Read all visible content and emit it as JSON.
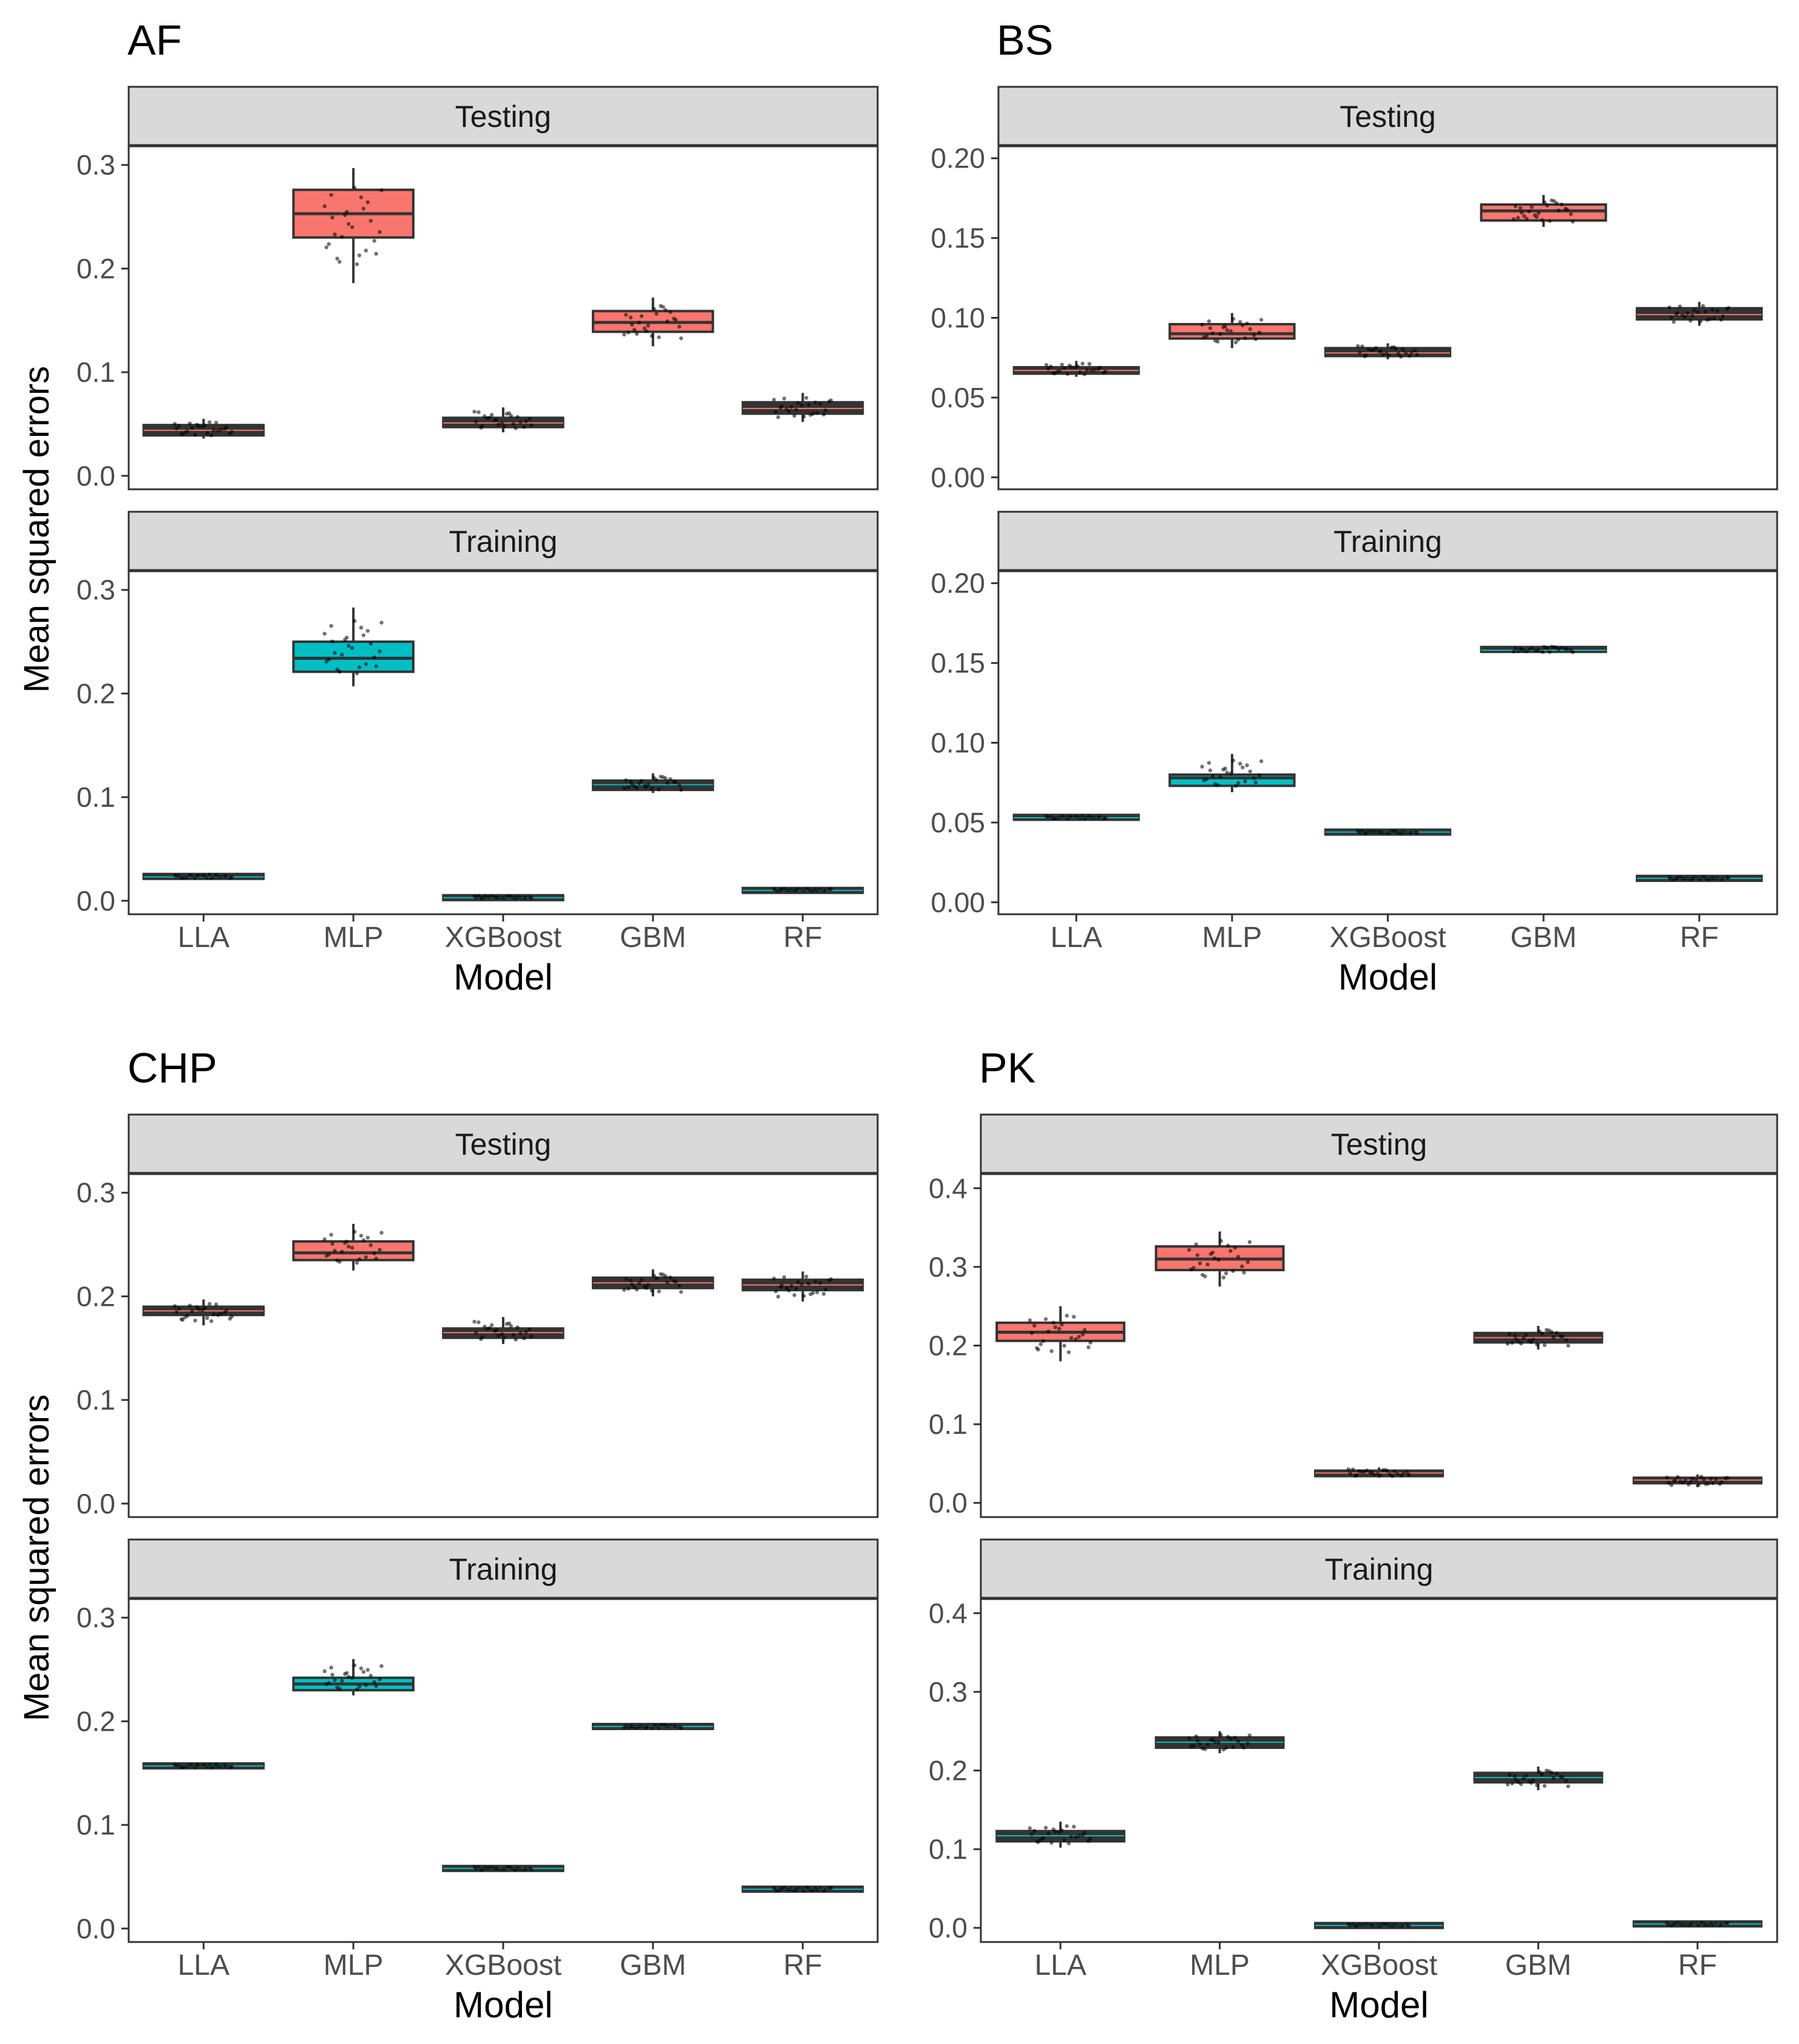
{
  "chart_data": [
    {
      "type": "boxplot",
      "title": "AF",
      "ylabel": "Mean squared errors",
      "xlabel": "Model",
      "categories": [
        "LLA",
        "MLP",
        "XGBoost",
        "GBM",
        "RF"
      ],
      "ylim": [
        -0.013,
        0.318
      ],
      "yticks": [
        "0.0",
        "0.1",
        "0.2",
        "0.3"
      ],
      "yticks_values": [
        0,
        0.1,
        0.2,
        0.3
      ],
      "panels": [
        {
          "strip": "Testing",
          "fill": "#F8766D",
          "boxes": [
            {
              "q1": 0.039,
              "median": 0.044,
              "q3": 0.049,
              "wlo": 0.036,
              "whi": 0.055,
              "highlight": false
            },
            {
              "q1": 0.23,
              "median": 0.253,
              "q3": 0.276,
              "wlo": 0.186,
              "whi": 0.297,
              "highlight": true
            },
            {
              "q1": 0.047,
              "median": 0.051,
              "q3": 0.056,
              "wlo": 0.042,
              "whi": 0.066,
              "highlight": false
            },
            {
              "q1": 0.139,
              "median": 0.148,
              "q3": 0.159,
              "wlo": 0.125,
              "whi": 0.172,
              "highlight": true
            },
            {
              "q1": 0.06,
              "median": 0.065,
              "q3": 0.071,
              "wlo": 0.052,
              "whi": 0.08,
              "highlight": false
            }
          ]
        },
        {
          "strip": "Training",
          "fill": "#00BFC4",
          "boxes": [
            {
              "q1": 0.022,
              "median": 0.023,
              "q3": 0.025,
              "wlo": 0.021,
              "whi": 0.026,
              "highlight": false
            },
            {
              "q1": 0.221,
              "median": 0.234,
              "q3": 0.25,
              "wlo": 0.207,
              "whi": 0.283,
              "highlight": true
            },
            {
              "q1": 0.002,
              "median": 0.003,
              "q3": 0.004,
              "wlo": 0.002,
              "whi": 0.005,
              "highlight": false
            },
            {
              "q1": 0.107,
              "median": 0.112,
              "q3": 0.116,
              "wlo": 0.104,
              "whi": 0.123,
              "highlight": false
            },
            {
              "q1": 0.009,
              "median": 0.01,
              "q3": 0.011,
              "wlo": 0.009,
              "whi": 0.012,
              "highlight": false
            }
          ]
        }
      ]
    },
    {
      "type": "boxplot",
      "title": "BS",
      "ylabel": "",
      "xlabel": "Model",
      "categories": [
        "LLA",
        "MLP",
        "XGBoost",
        "GBM",
        "RF"
      ],
      "ylim": [
        -0.0075,
        0.2075
      ],
      "yticks": [
        "0.00",
        "0.05",
        "0.10",
        "0.15",
        "0.20"
      ],
      "yticks_values": [
        0,
        0.05,
        0.1,
        0.15,
        0.2
      ],
      "panels": [
        {
          "strip": "Testing",
          "fill": "#F8766D",
          "boxes": [
            {
              "q1": 0.065,
              "median": 0.067,
              "q3": 0.069,
              "wlo": 0.063,
              "whi": 0.073,
              "highlight": false
            },
            {
              "q1": 0.087,
              "median": 0.09,
              "q3": 0.096,
              "wlo": 0.081,
              "whi": 0.103,
              "highlight": true
            },
            {
              "q1": 0.076,
              "median": 0.078,
              "q3": 0.081,
              "wlo": 0.074,
              "whi": 0.084,
              "highlight": false
            },
            {
              "q1": 0.161,
              "median": 0.167,
              "q3": 0.171,
              "wlo": 0.157,
              "whi": 0.177,
              "highlight": true
            },
            {
              "q1": 0.099,
              "median": 0.102,
              "q3": 0.106,
              "wlo": 0.095,
              "whi": 0.11,
              "highlight": false
            }
          ]
        },
        {
          "strip": "Training",
          "fill": "#00BFC4",
          "boxes": [
            {
              "q1": 0.0525,
              "median": 0.053,
              "q3": 0.054,
              "wlo": 0.052,
              "whi": 0.0545,
              "highlight": false
            },
            {
              "q1": 0.073,
              "median": 0.078,
              "q3": 0.08,
              "wlo": 0.069,
              "whi": 0.093,
              "highlight": true
            },
            {
              "q1": 0.0435,
              "median": 0.044,
              "q3": 0.0445,
              "wlo": 0.043,
              "whi": 0.045,
              "highlight": false
            },
            {
              "q1": 0.157,
              "median": 0.158,
              "q3": 0.16,
              "wlo": 0.156,
              "whi": 0.161,
              "highlight": false
            },
            {
              "q1": 0.0145,
              "median": 0.015,
              "q3": 0.0155,
              "wlo": 0.014,
              "whi": 0.016,
              "highlight": false
            }
          ]
        }
      ]
    },
    {
      "type": "boxplot",
      "title": "CHP",
      "ylabel": "Mean squared errors",
      "xlabel": "Model",
      "categories": [
        "LLA",
        "MLP",
        "XGBoost",
        "GBM",
        "RF"
      ],
      "ylim": [
        -0.013,
        0.318
      ],
      "yticks": [
        "0.0",
        "0.1",
        "0.2",
        "0.3"
      ],
      "yticks_values": [
        0,
        0.1,
        0.2,
        0.3
      ],
      "panels": [
        {
          "strip": "Testing",
          "fill": "#F8766D",
          "boxes": [
            {
              "q1": 0.182,
              "median": 0.186,
              "q3": 0.19,
              "wlo": 0.172,
              "whi": 0.197,
              "highlight": false
            },
            {
              "q1": 0.235,
              "median": 0.242,
              "q3": 0.253,
              "wlo": 0.225,
              "whi": 0.27,
              "highlight": true
            },
            {
              "q1": 0.16,
              "median": 0.165,
              "q3": 0.169,
              "wlo": 0.154,
              "whi": 0.18,
              "highlight": false
            },
            {
              "q1": 0.208,
              "median": 0.213,
              "q3": 0.218,
              "wlo": 0.2,
              "whi": 0.226,
              "highlight": false
            },
            {
              "q1": 0.206,
              "median": 0.211,
              "q3": 0.216,
              "wlo": 0.195,
              "whi": 0.224,
              "highlight": false
            }
          ]
        },
        {
          "strip": "Training",
          "fill": "#00BFC4",
          "boxes": [
            {
              "q1": 0.156,
              "median": 0.157,
              "q3": 0.158,
              "wlo": 0.155,
              "whi": 0.159,
              "highlight": false
            },
            {
              "q1": 0.23,
              "median": 0.236,
              "q3": 0.242,
              "wlo": 0.225,
              "whi": 0.26,
              "highlight": true
            },
            {
              "q1": 0.057,
              "median": 0.058,
              "q3": 0.059,
              "wlo": 0.056,
              "whi": 0.06,
              "highlight": false
            },
            {
              "q1": 0.194,
              "median": 0.195,
              "q3": 0.196,
              "wlo": 0.193,
              "whi": 0.197,
              "highlight": false
            },
            {
              "q1": 0.037,
              "median": 0.038,
              "q3": 0.039,
              "wlo": 0.036,
              "whi": 0.04,
              "highlight": false
            }
          ]
        }
      ]
    },
    {
      "type": "boxplot",
      "title": "PK",
      "ylabel": "",
      "xlabel": "Model",
      "categories": [
        "LLA",
        "MLP",
        "XGBoost",
        "GBM",
        "RF"
      ],
      "ylim": [
        -0.018,
        0.418
      ],
      "yticks": [
        "0.0",
        "0.1",
        "0.2",
        "0.3",
        "0.4"
      ],
      "yticks_values": [
        0,
        0.1,
        0.2,
        0.3,
        0.4
      ],
      "panels": [
        {
          "strip": "Testing",
          "fill": "#F8766D",
          "boxes": [
            {
              "q1": 0.206,
              "median": 0.217,
              "q3": 0.229,
              "wlo": 0.18,
              "whi": 0.25,
              "highlight": true
            },
            {
              "q1": 0.296,
              "median": 0.31,
              "q3": 0.326,
              "wlo": 0.275,
              "whi": 0.345,
              "highlight": true
            },
            {
              "q1": 0.034,
              "median": 0.038,
              "q3": 0.041,
              "wlo": 0.032,
              "whi": 0.045,
              "highlight": false
            },
            {
              "q1": 0.204,
              "median": 0.21,
              "q3": 0.216,
              "wlo": 0.195,
              "whi": 0.225,
              "highlight": false
            },
            {
              "q1": 0.025,
              "median": 0.029,
              "q3": 0.032,
              "wlo": 0.02,
              "whi": 0.036,
              "highlight": false
            }
          ]
        },
        {
          "strip": "Training",
          "fill": "#00BFC4",
          "boxes": [
            {
              "q1": 0.11,
              "median": 0.117,
              "q3": 0.123,
              "wlo": 0.102,
              "whi": 0.135,
              "highlight": false
            },
            {
              "q1": 0.229,
              "median": 0.236,
              "q3": 0.242,
              "wlo": 0.222,
              "whi": 0.25,
              "highlight": false
            },
            {
              "q1": 0.002,
              "median": 0.003,
              "q3": 0.004,
              "wlo": 0.002,
              "whi": 0.005,
              "highlight": false
            },
            {
              "q1": 0.185,
              "median": 0.191,
              "q3": 0.197,
              "wlo": 0.175,
              "whi": 0.205,
              "highlight": false
            },
            {
              "q1": 0.004,
              "median": 0.005,
              "q3": 0.006,
              "wlo": 0.003,
              "whi": 0.007,
              "highlight": false
            }
          ]
        }
      ]
    }
  ]
}
